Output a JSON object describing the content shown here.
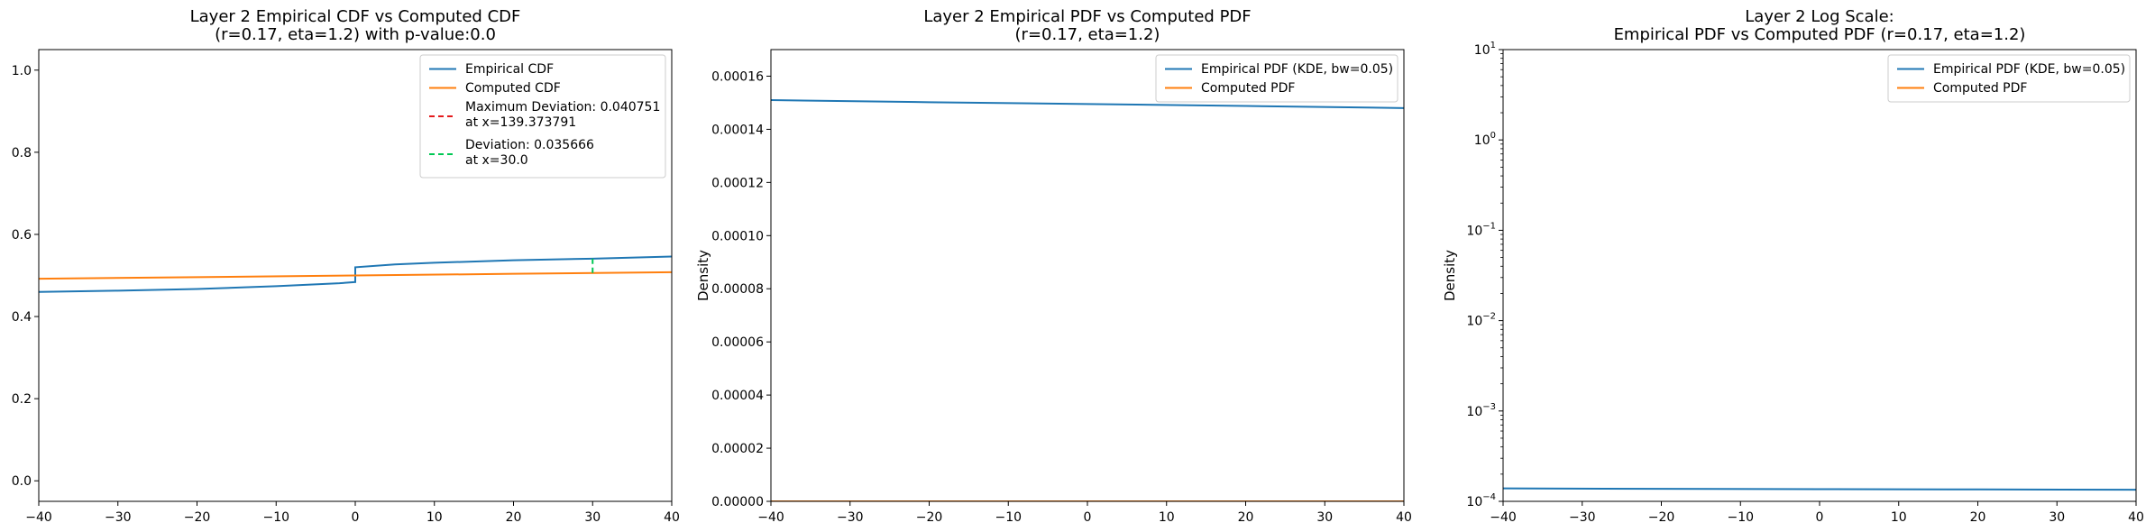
{
  "chart_data": [
    {
      "type": "line",
      "title": "Layer 2 Empirical CDF vs Computed CDF",
      "subtitle": "(r=0.17, eta=1.2) with p-value:0.0",
      "xlabel": "",
      "ylabel": "",
      "xlim": [
        -40,
        40
      ],
      "ylim": [
        -0.05,
        1.05
      ],
      "yscale": "linear",
      "xticks": [
        "−40",
        "−30",
        "−20",
        "−10",
        "0",
        "10",
        "20",
        "30",
        "40"
      ],
      "yticks": [
        "0.0",
        "0.2",
        "0.4",
        "0.6",
        "0.8",
        "1.0"
      ],
      "legend_position": "top-right",
      "series": [
        {
          "name": "Empirical CDF",
          "color": "#1f77b4",
          "points": [
            [
              -40,
              0.46
            ],
            [
              -30,
              0.463
            ],
            [
              -20,
              0.467
            ],
            [
              -10,
              0.474
            ],
            [
              -2,
              0.481
            ],
            [
              0,
              0.484
            ],
            [
              0,
              0.52
            ],
            [
              5,
              0.527
            ],
            [
              10,
              0.531
            ],
            [
              20,
              0.537
            ],
            [
              30,
              0.541
            ],
            [
              40,
              0.546
            ]
          ]
        },
        {
          "name": "Computed CDF",
          "color": "#ff7f0e",
          "points": [
            [
              -40,
              0.492
            ],
            [
              -20,
              0.496
            ],
            [
              0,
              0.5
            ],
            [
              20,
              0.504
            ],
            [
              40,
              0.508
            ]
          ]
        },
        {
          "name": "Maximum Deviation: 0.040751",
          "name_line2": "at x=139.373791",
          "color": "#e41a1c",
          "dashed": true,
          "points": []
        },
        {
          "name": "Deviation: 0.035666",
          "name_line2": "at x=30.0",
          "color": "#00c853",
          "dashed": true,
          "points": [
            [
              30,
              0.506
            ],
            [
              30,
              0.541
            ]
          ]
        }
      ]
    },
    {
      "type": "line",
      "title": "Layer 2 Empirical PDF vs Computed PDF",
      "subtitle": "(r=0.17, eta=1.2)",
      "xlabel": "",
      "ylabel": "Density",
      "xlim": [
        -40,
        40
      ],
      "ylim": [
        0,
        0.00017
      ],
      "yscale": "linear",
      "xticks": [
        "−40",
        "−30",
        "−20",
        "−10",
        "0",
        "10",
        "20",
        "30",
        "40"
      ],
      "yticks": [
        "0.00000",
        "0.00002",
        "0.00004",
        "0.00006",
        "0.00008",
        "0.00010",
        "0.00012",
        "0.00014",
        "0.00016"
      ],
      "legend_position": "top-right",
      "series": [
        {
          "name": "Empirical PDF (KDE, bw=0.05)",
          "color": "#1f77b4",
          "points": [
            [
              -40,
              0.000151
            ],
            [
              -20,
              0.0001502
            ],
            [
              0,
              0.0001495
            ],
            [
              20,
              0.0001488
            ],
            [
              40,
              0.000148
            ]
          ]
        },
        {
          "name": "Computed PDF",
          "color": "#ff7f0e",
          "points": [
            [
              -40,
              0.0
            ],
            [
              40,
              0.0
            ]
          ]
        }
      ]
    },
    {
      "type": "line",
      "title": "Layer 2 Log Scale:",
      "subtitle": "Empirical PDF vs Computed PDF (r=0.17, eta=1.2)",
      "xlabel": "",
      "ylabel": "Density",
      "xlim": [
        -40,
        40
      ],
      "ylim": [
        0.0001,
        10
      ],
      "yscale": "log",
      "xticks": [
        "−40",
        "−30",
        "−20",
        "−10",
        "0",
        "10",
        "20",
        "30",
        "40"
      ],
      "yticks": [
        {
          "base": "10",
          "exp": "−4"
        },
        {
          "base": "10",
          "exp": "−3"
        },
        {
          "base": "10",
          "exp": "−2"
        },
        {
          "base": "10",
          "exp": "−1"
        },
        {
          "base": "10",
          "exp": "0"
        },
        {
          "base": "10",
          "exp": "1"
        }
      ],
      "legend_position": "top-right",
      "series": [
        {
          "name": "Empirical PDF (KDE, bw=0.05)",
          "color": "#1f77b4",
          "points": [
            [
              -40,
              0.000139
            ],
            [
              -20,
              0.0001375
            ],
            [
              0,
              0.0001365
            ],
            [
              20,
              0.0001355
            ],
            [
              40,
              0.0001345
            ]
          ]
        },
        {
          "name": "Computed PDF",
          "color": "#ff7f0e",
          "points": []
        }
      ]
    }
  ]
}
